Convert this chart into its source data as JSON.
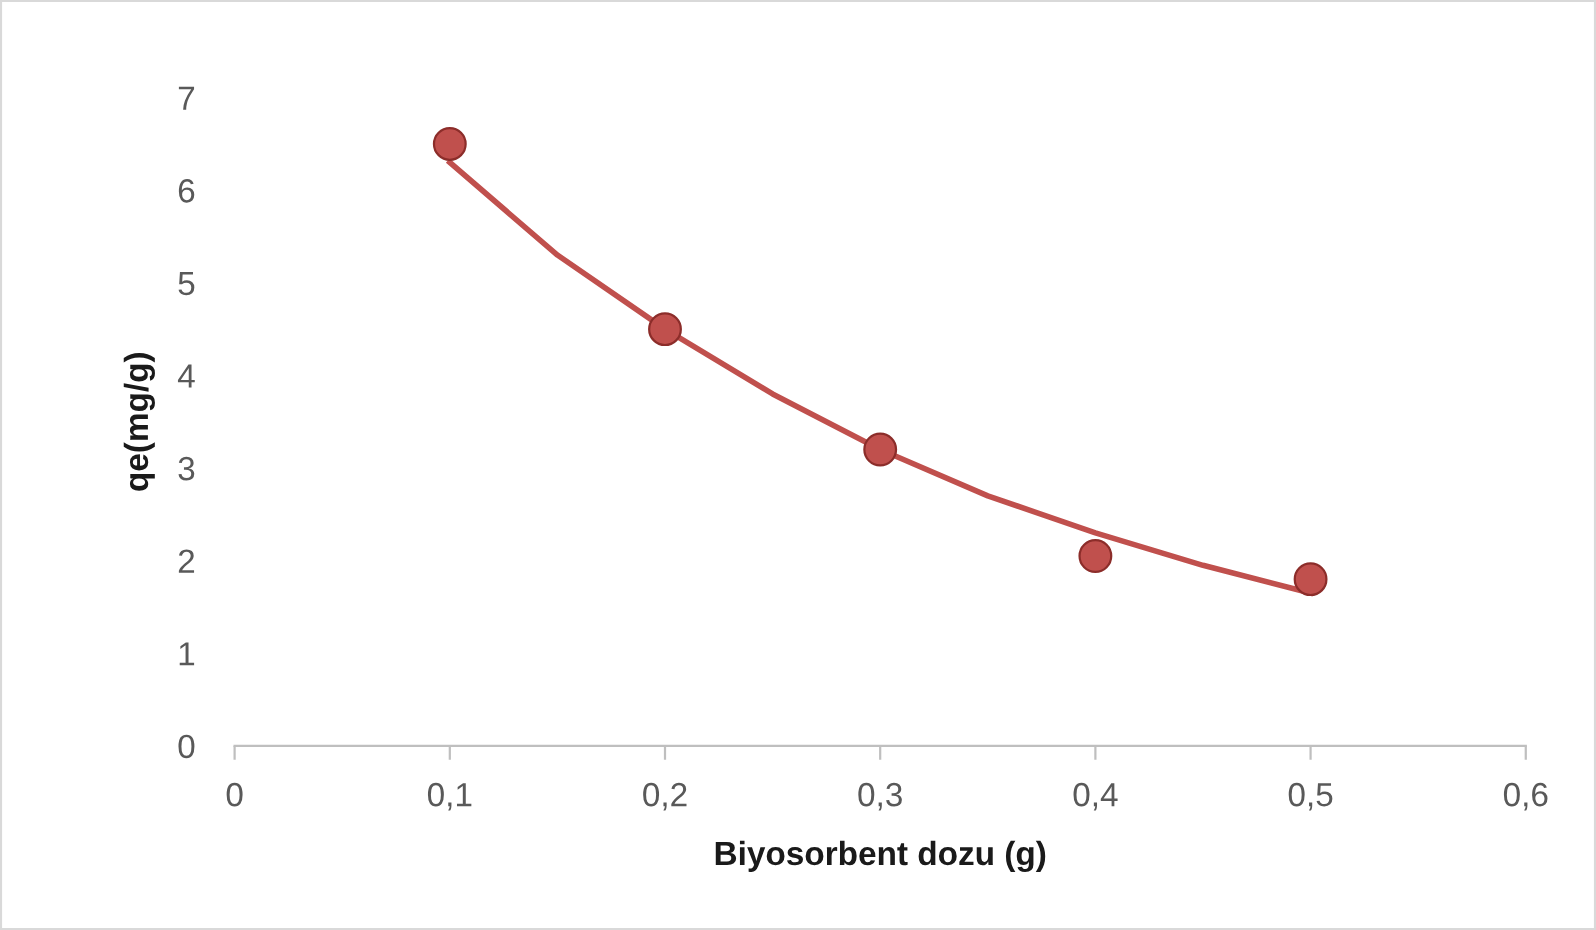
{
  "chart_data": {
    "type": "scatter",
    "xlabel": "Biyosorbent dozu (g)",
    "ylabel": "qe(mg/g)",
    "xlim": [
      0,
      0.6
    ],
    "ylim": [
      0,
      7
    ],
    "xticks": [
      {
        "value": 0,
        "label": "0"
      },
      {
        "value": 0.1,
        "label": "0,1"
      },
      {
        "value": 0.2,
        "label": "0,2"
      },
      {
        "value": 0.3,
        "label": "0,3"
      },
      {
        "value": 0.4,
        "label": "0,4"
      },
      {
        "value": 0.5,
        "label": "0,5"
      },
      {
        "value": 0.6,
        "label": "0,6"
      }
    ],
    "yticks": [
      0,
      1,
      2,
      3,
      4,
      5,
      6,
      7
    ],
    "grid": false,
    "legend": false,
    "series": [
      {
        "type": "line",
        "color": "#c0504d",
        "marker": "none",
        "line_style": "solid",
        "x": [
          0.1,
          0.15,
          0.2,
          0.25,
          0.3,
          0.35,
          0.4,
          0.45,
          0.5
        ],
        "values": [
          6.3,
          5.3,
          4.5,
          3.8,
          3.2,
          2.7,
          2.3,
          1.95,
          1.65
        ]
      },
      {
        "color": "#c0504d",
        "marker": "circle",
        "x": [
          0.1,
          0.2,
          0.3,
          0.4,
          0.5
        ],
        "values": [
          6.5,
          4.5,
          3.2,
          2.05,
          1.8
        ]
      }
    ]
  }
}
